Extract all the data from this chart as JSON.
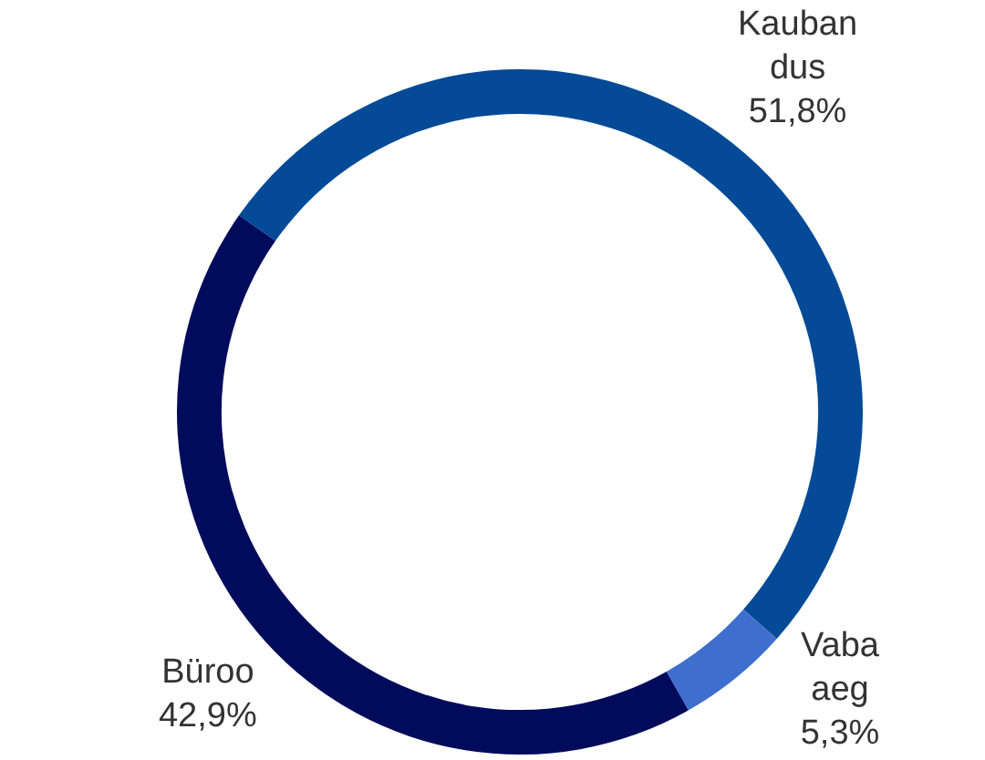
{
  "chart_data": {
    "type": "donut",
    "categories": [
      "Kaubandus",
      "Vaba aeg",
      "Büroo"
    ],
    "values": [
      51.8,
      5.3,
      42.9
    ],
    "colors": [
      "#044a96",
      "#3f6fce",
      "#000b5c"
    ],
    "value_labels": [
      "51,8%",
      "5,3%",
      "42,9%"
    ]
  }
}
